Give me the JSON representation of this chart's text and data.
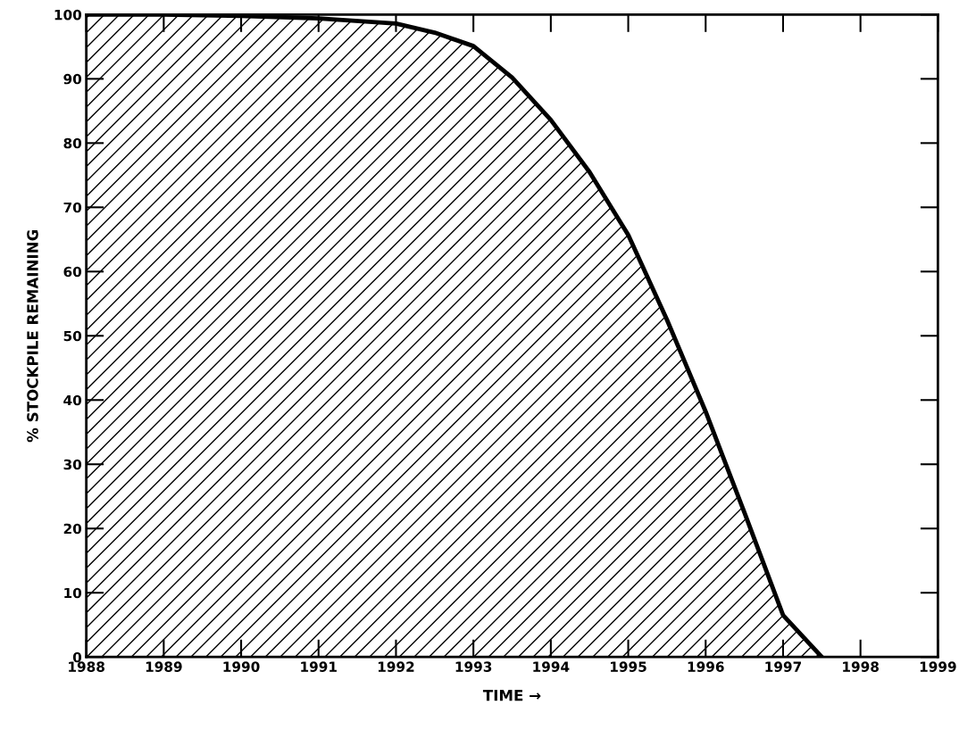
{
  "chart_data": {
    "type": "area",
    "xlabel": "TIME →",
    "ylabel": "% STOCKPILE REMAINING",
    "x": [
      1988,
      1989,
      1990,
      1991,
      1992,
      1992.5,
      1993,
      1993.5,
      1994,
      1994.5,
      1995,
      1995.5,
      1996,
      1996.5,
      1997,
      1997.5
    ],
    "series": [
      {
        "color": "#000000",
        "values": [
          100,
          100,
          99.8,
          99.4,
          98.6,
          97.2,
          95.1,
          90.2,
          83.6,
          75.5,
          65.7,
          52.5,
          38.2,
          22.5,
          6.5,
          0
        ]
      }
    ],
    "xlim": [
      1988,
      1999
    ],
    "ylim": [
      0,
      100
    ],
    "xticks": [
      1988,
      1989,
      1990,
      1991,
      1992,
      1993,
      1994,
      1995,
      1996,
      1997,
      1998,
      1999
    ],
    "yticks": [
      0,
      10,
      20,
      30,
      40,
      50,
      60,
      70,
      80,
      90,
      100
    ],
    "grid": false,
    "legend": false
  }
}
